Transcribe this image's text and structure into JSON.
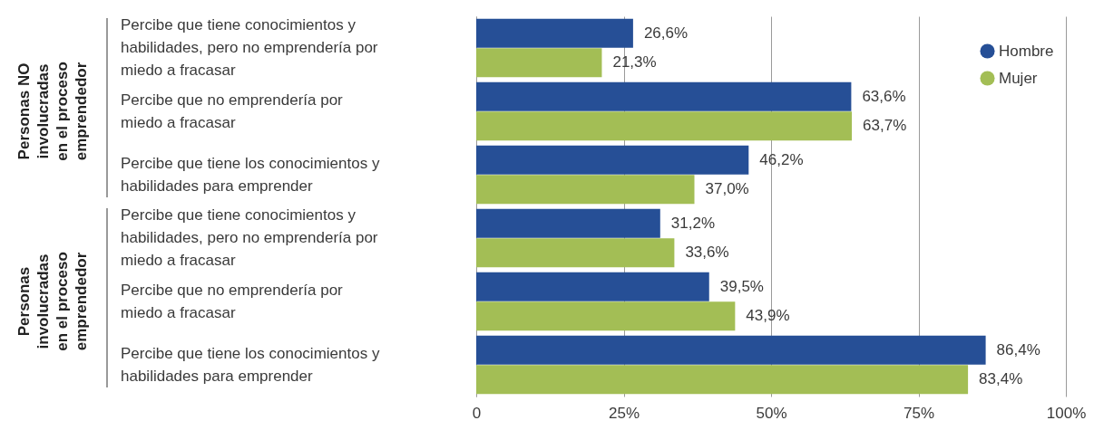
{
  "chart_data": {
    "type": "bar",
    "orientation": "horizontal",
    "categories": [
      "Percibe que tiene conocimientos y\nhabilidades, pero no emprendería por\nmiedo a fracasar",
      "Percibe que no emprendería por\nmiedo a fracasar",
      "Percibe que tiene los conocimientos y\nhabilidades para emprender",
      "Percibe que tiene conocimientos y\nhabilidades, pero no emprendería por\nmiedo a fracasar",
      "Percibe que no emprendería por\nmiedo a fracasar",
      "Percibe que tiene los conocimientos y\nhabilidades para emprender"
    ],
    "series": [
      {
        "name": "Hombre",
        "color": "#264f96",
        "values": [
          26.6,
          63.6,
          46.2,
          31.2,
          39.5,
          86.4
        ],
        "value_labels": [
          "26,6%",
          "63,6%",
          "46,2%",
          "31,2%",
          "39,5%",
          "86,4%"
        ]
      },
      {
        "name": "Mujer",
        "color": "#a3be55",
        "values": [
          21.3,
          63.7,
          37.0,
          33.6,
          43.9,
          83.4
        ],
        "value_labels": [
          "21,3%",
          "63,7%",
          "37,0%",
          "33,6%",
          "43,9%",
          "83,4%"
        ]
      }
    ],
    "xlim": [
      0,
      100
    ],
    "xticks": [
      0,
      {
        "value": 25,
        "label": "25%"
      },
      {
        "value": 50,
        "label": "50%"
      },
      {
        "value": 75,
        "label": "75%"
      },
      {
        "value": 100,
        "label": "100%"
      }
    ],
    "grid": "x",
    "legend": "top right",
    "annotations": [
      "Personas NO involucradas en el proceso emprendedor",
      "Personas involucradas en el proceso emprendedor"
    ]
  }
}
